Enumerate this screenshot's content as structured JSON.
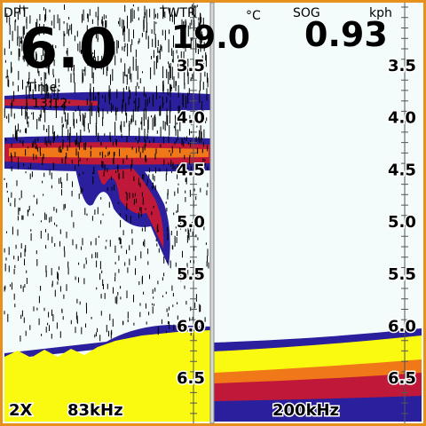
{
  "readings": {
    "depth_label": "DPT",
    "depth": "6.0",
    "temp_label": "TWTR",
    "temp": "19.0",
    "temp_unit": "°C",
    "speed_label": "SOG",
    "speed_unit": "kph",
    "speed": "0.93",
    "time_label": "Time:",
    "time": "13:12"
  },
  "depth_scale": [
    "3.5",
    "4.0",
    "4.5",
    "5.0",
    "5.5",
    "6.0",
    "6.5"
  ],
  "left_panel": {
    "zoom": "2X",
    "frequency": "83kHz"
  },
  "right_panel": {
    "frequency": "200kHz"
  }
}
